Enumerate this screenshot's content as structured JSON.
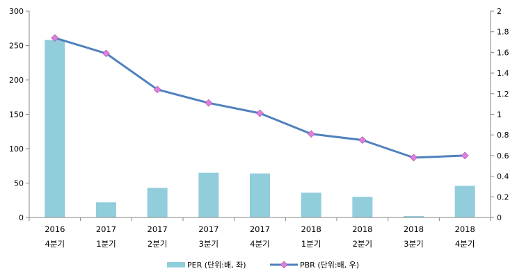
{
  "chart_data": {
    "type": "bar+line",
    "categories": [
      [
        "2016",
        "4분기"
      ],
      [
        "2017",
        "1분기"
      ],
      [
        "2017",
        "2분기"
      ],
      [
        "2017",
        "3분기"
      ],
      [
        "2017",
        "4분기"
      ],
      [
        "2018",
        "1분기"
      ],
      [
        "2018",
        "2분기"
      ],
      [
        "2018",
        "3분기"
      ],
      [
        "2018",
        "4분기"
      ]
    ],
    "series": [
      {
        "name": "PER (단위:배, 좌)",
        "type": "bar",
        "axis": "left",
        "color": "#92cddc",
        "values": [
          258,
          22,
          43,
          65,
          64,
          36,
          30,
          2,
          46
        ]
      },
      {
        "name": "PBR (단위:배, 우)",
        "type": "line",
        "axis": "right",
        "color": "#4f81bd",
        "marker_color": "#e07de0",
        "values": [
          1.74,
          1.59,
          1.24,
          1.11,
          1.01,
          0.81,
          0.75,
          0.58,
          0.6
        ]
      }
    ],
    "y_left": {
      "min": 0,
      "max": 300,
      "ticks": [
        "0",
        "50",
        "100",
        "150",
        "200",
        "250",
        "300"
      ]
    },
    "y_right": {
      "min": 0,
      "max": 2,
      "ticks": [
        "0",
        "0.2",
        "0.4",
        "0.6",
        "0.8",
        "1",
        "1.2",
        "1.4",
        "1.6",
        "1.8",
        "2"
      ]
    },
    "grid": false,
    "legend_position": "bottom"
  }
}
